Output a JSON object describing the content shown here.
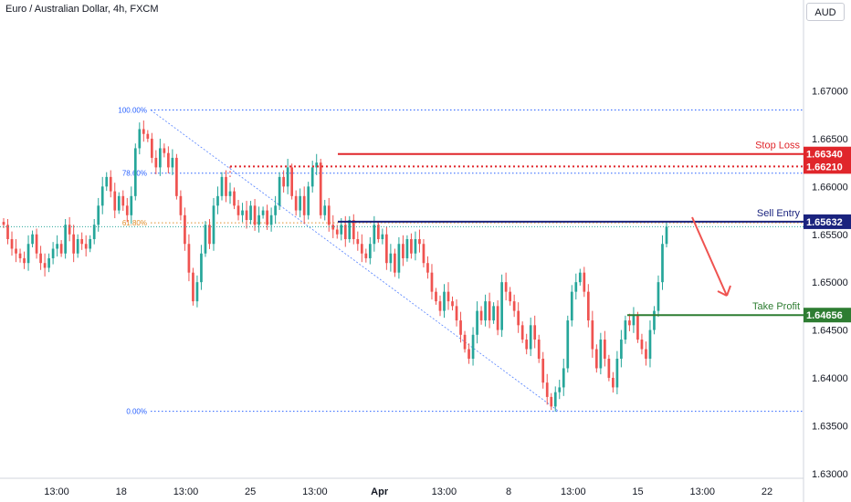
{
  "header": {
    "title": "Euro / Australian Dollar, 4h, FXCM",
    "currency": "AUD"
  },
  "colors": {
    "up": "#26a69a",
    "down": "#ef5350",
    "stop": "#e0262b",
    "entry": "#1a237e",
    "profit": "#2e7d32",
    "fib_blue": "#2962ff",
    "fib_orange": "#e08e2c",
    "arrow": "#ef5350"
  },
  "chart_data": {
    "type": "candlestick",
    "title": "Euro / Australian Dollar, 4h, FXCM",
    "ylim": [
      1.6295,
      1.6795
    ],
    "y_ticks": [
      "1.67000",
      "1.66500",
      "1.66000",
      "1.65500",
      "1.65000",
      "1.64500",
      "1.64000",
      "1.63500",
      "1.63000"
    ],
    "x_ticks": [
      "13:00",
      "18",
      "13:00",
      "25",
      "13:00",
      "Apr",
      "13:00",
      "8",
      "13:00",
      "15",
      "13:00",
      "22"
    ],
    "fibonacci": [
      {
        "label": "100.00%",
        "price": 1.668
      },
      {
        "label": "78.60%",
        "price": 1.6614
      },
      {
        "label": "61.80%",
        "price": 1.6562
      },
      {
        "label": "0.00%",
        "price": 1.6365
      }
    ],
    "levels": [
      {
        "name": "Stop Loss",
        "price": 1.6634,
        "tag": "1.66340"
      },
      {
        "name": "",
        "price": 1.6621,
        "tag": "1.66210"
      },
      {
        "name": "Sell Entry",
        "price": 1.65632,
        "tag": "1.65632"
      },
      {
        "name": "Take Profit",
        "price": 1.64656,
        "tag": "1.64656"
      }
    ],
    "closes": [
      1.656,
      1.6545,
      1.6535,
      1.653,
      1.6525,
      1.652,
      1.654,
      1.655,
      1.653,
      1.652,
      1.6515,
      1.6525,
      1.6535,
      1.654,
      1.653,
      1.656,
      1.655,
      1.653,
      1.6545,
      1.654,
      1.6535,
      1.6545,
      1.656,
      1.658,
      1.66,
      1.661,
      1.6595,
      1.6575,
      1.659,
      1.658,
      1.657,
      1.659,
      1.664,
      1.666,
      1.6655,
      1.665,
      1.663,
      1.662,
      1.664,
      1.6635,
      1.662,
      1.663,
      1.659,
      1.657,
      1.654,
      1.651,
      1.648,
      1.65,
      1.653,
      1.656,
      1.654,
      1.658,
      1.659,
      1.661,
      1.659,
      1.6595,
      1.658,
      1.657,
      1.6575,
      1.6565,
      1.658,
      1.656,
      1.657,
      1.6575,
      1.656,
      1.657,
      1.658,
      1.661,
      1.66,
      1.662,
      1.659,
      1.6575,
      1.659,
      1.657,
      1.66,
      1.662,
      1.6625,
      1.657,
      1.658,
      1.656,
      1.6555,
      1.655,
      1.656,
      1.6545,
      1.6565,
      1.6545,
      1.654,
      1.653,
      1.6525,
      1.654,
      1.656,
      1.6545,
      1.655,
      1.652,
      1.653,
      1.651,
      1.654,
      1.6525,
      1.6545,
      1.653,
      1.6545,
      1.654,
      1.652,
      1.651,
      1.649,
      1.648,
      1.647,
      1.649,
      1.648,
      1.6475,
      1.646,
      1.6445,
      1.643,
      1.642,
      1.6445,
      1.647,
      1.646,
      1.648,
      1.646,
      1.6475,
      1.645,
      1.65,
      1.649,
      1.648,
      1.647,
      1.6455,
      1.644,
      1.643,
      1.6455,
      1.644,
      1.642,
      1.6395,
      1.638,
      1.637,
      1.6385,
      1.639,
      1.641,
      1.646,
      1.649,
      1.65,
      1.651,
      1.649,
      1.646,
      1.643,
      1.641,
      1.644,
      1.642,
      1.64,
      1.639,
      1.642,
      1.644,
      1.646,
      1.6455,
      1.6465,
      1.644,
      1.643,
      1.642,
      1.645,
      1.647,
      1.65,
      1.654,
      1.6558
    ]
  }
}
